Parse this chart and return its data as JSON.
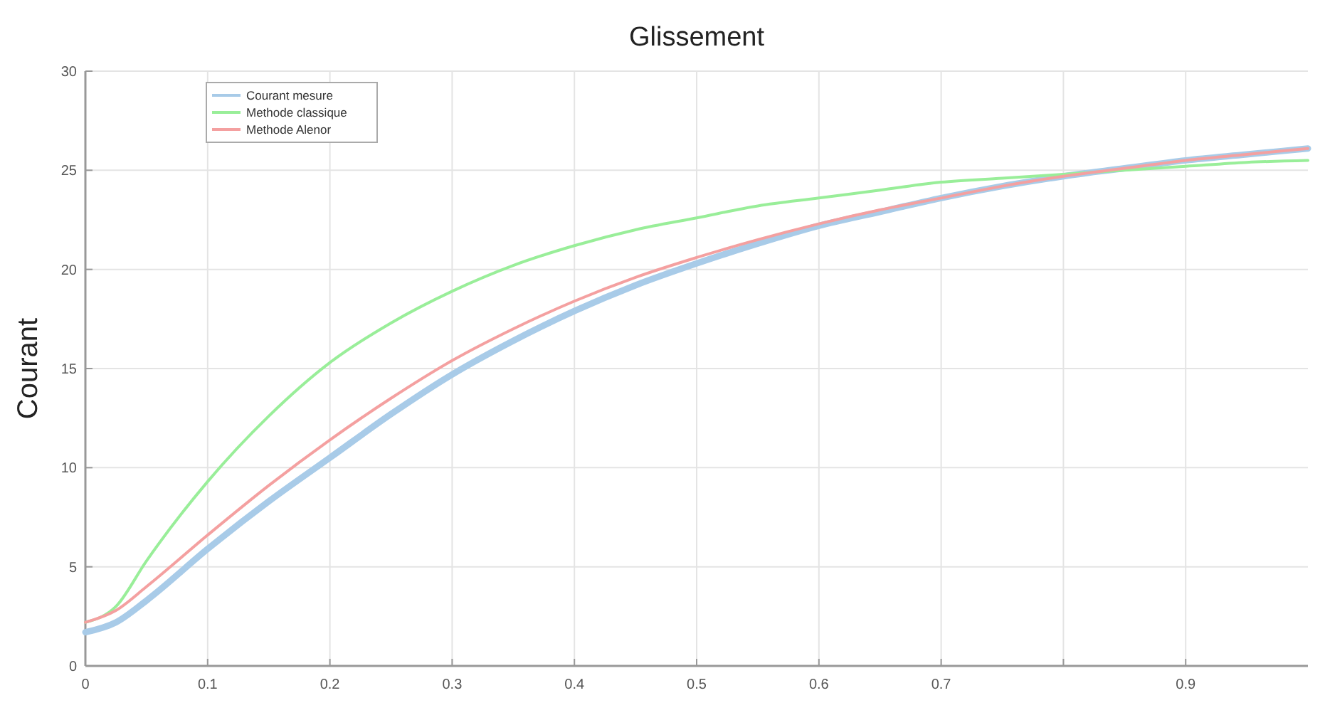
{
  "chart_data": {
    "type": "line",
    "title": "Glissement",
    "ylabel": "Courant",
    "xlim": [
      0,
      1
    ],
    "ylim": [
      0,
      30
    ],
    "xticks": [
      0,
      0.1,
      0.2,
      0.3,
      0.4,
      0.5,
      0.6,
      0.7,
      {
        "value": 0.8,
        "label": null
      },
      0.9
    ],
    "yticks": [
      0,
      5,
      10,
      15,
      20,
      25,
      30
    ],
    "grid": true,
    "legend": "top left",
    "line_style": "solid",
    "marker": "none",
    "x": [
      0,
      0.025,
      0.05,
      0.1,
      0.15,
      0.2,
      0.25,
      0.3,
      0.35,
      0.4,
      0.45,
      0.5,
      0.55,
      0.6,
      0.65,
      0.7,
      0.75,
      0.8,
      0.85,
      0.9,
      0.95,
      1.0
    ],
    "series": [
      {
        "name": "Courant mesure",
        "color": "#a8cbe8",
        "values": [
          1.7,
          2.2,
          3.3,
          5.9,
          8.3,
          10.5,
          12.7,
          14.7,
          16.4,
          17.9,
          19.2,
          20.3,
          21.3,
          22.2,
          22.9,
          23.6,
          24.2,
          24.7,
          25.1,
          25.5,
          25.8,
          26.1
        ]
      },
      {
        "name": "Methode classique",
        "color": "#99ee99",
        "values": [
          2.2,
          3.0,
          5.3,
          9.3,
          12.6,
          15.3,
          17.3,
          18.9,
          20.2,
          21.2,
          22.0,
          22.6,
          23.2,
          23.6,
          24.0,
          24.4,
          24.6,
          24.8,
          25.0,
          25.2,
          25.4,
          25.5
        ]
      },
      {
        "name": "Methode Alenor",
        "color": "#f4a0a0",
        "values": [
          2.2,
          2.8,
          4.0,
          6.6,
          9.1,
          11.4,
          13.5,
          15.4,
          17.0,
          18.4,
          19.6,
          20.6,
          21.5,
          22.3,
          23.0,
          23.6,
          24.2,
          24.7,
          25.1,
          25.5,
          25.8,
          26.1
        ]
      }
    ]
  }
}
